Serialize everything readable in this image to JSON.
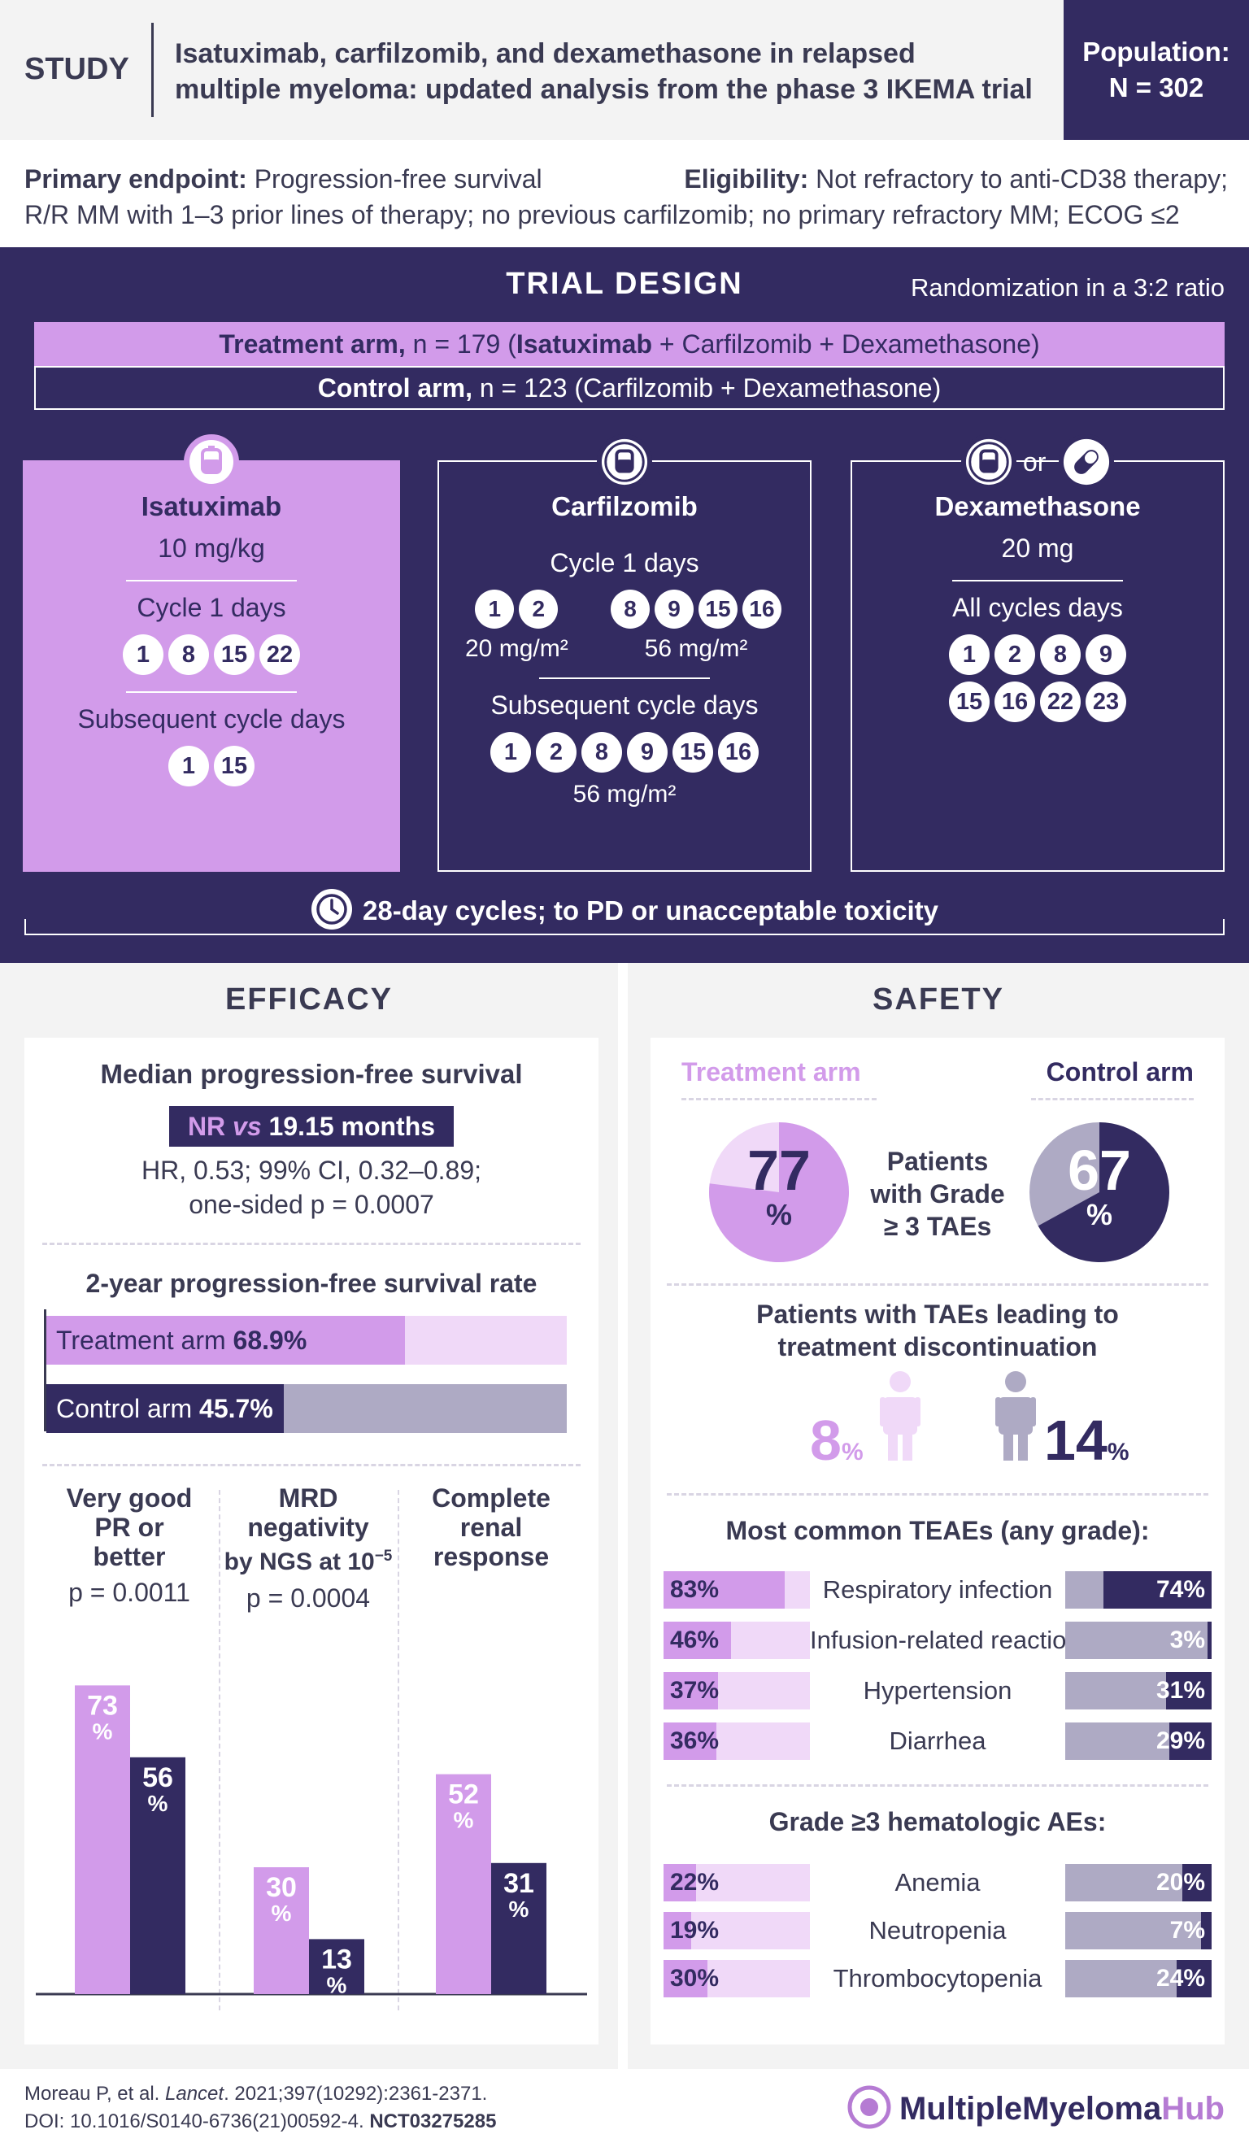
{
  "header": {
    "study_label": "STUDY",
    "title_line1": "Isatuximab, carfilzomib, and dexamethasone in relapsed",
    "title_line2": "multiple myeloma: updated analysis from the phase 3 IKEMA trial",
    "population_label": "Population:",
    "population_value": "N = 302"
  },
  "criteria": {
    "primary_label": "Primary endpoint:",
    "primary_value": "Progression-free survival",
    "eligibility_label": "Eligibility:",
    "eligibility_value": "Not refractory to anti-CD38 therapy;",
    "line2": "R/R MM with 1–3 prior lines of therapy; no previous carfilzomib; no primary refractory MM; ECOG ≤2"
  },
  "design": {
    "title": "TRIAL DESIGN",
    "randomization": "Randomization in a 3:2 ratio",
    "treatment_label": "Treatment arm,",
    "treatment_n": "n = 179 (",
    "treatment_drug_bold": "Isatuximab",
    "treatment_rest": " + Carfilzomib + Dexamethasone)",
    "control_label": "Control arm,",
    "control_rest": "n = 123 (Carfilzomib + Dexamethasone)",
    "isa": {
      "name": "Isatuximab",
      "dose": "10 mg/kg",
      "cycle1_label": "Cycle 1 days",
      "cycle1_days": [
        "1",
        "8",
        "15",
        "22"
      ],
      "subseq_label": "Subsequent cycle days",
      "subseq_days": [
        "1",
        "15"
      ]
    },
    "carf": {
      "name": "Carfilzomib",
      "cycle1_label": "Cycle 1 days",
      "cycle1_days_a": [
        "1",
        "2"
      ],
      "cycle1_dose_a": "20 mg/m²",
      "cycle1_days_b": [
        "8",
        "9",
        "15",
        "16"
      ],
      "cycle1_dose_b": "56 mg/m²",
      "subseq_label": "Subsequent cycle days",
      "subseq_days": [
        "1",
        "2",
        "8",
        "9",
        "15",
        "16"
      ],
      "subseq_dose": "56 mg/m²"
    },
    "dex": {
      "or_text": "or",
      "name": "Dexamethasone",
      "dose": "20 mg",
      "all_label": "All cycles days",
      "days_row1": [
        "1",
        "2",
        "8",
        "9"
      ],
      "days_row2": [
        "15",
        "16",
        "22",
        "23"
      ]
    },
    "cycles_note": "28-day cycles; to PD or unacceptable toxicity"
  },
  "efficacy": {
    "title": "EFFICACY",
    "mpfs_title": "Median progression-free survival",
    "mpfs_nr": "NR",
    "mpfs_vs": "vs",
    "mpfs_value": "19.15 months",
    "hr_line1": "HR, 0.53; 99% CI, 0.32–0.89;",
    "hr_line2": "one-sided p = 0.0007",
    "pfs2_title": "2-year progression-free survival rate",
    "pfs2_treat_label": "Treatment arm",
    "pfs2_treat_value": "68.9%",
    "pfs2_ctrl_label": "Control arm",
    "pfs2_ctrl_value": "45.7%",
    "groups": [
      {
        "l1": "Very good",
        "l2": "PR or",
        "l3": "better",
        "p": "p = 0.0011"
      },
      {
        "l1": "MRD",
        "l2": "negativity",
        "l3": "by NGS at 10",
        "sup": "−5",
        "p": "p = 0.0004"
      },
      {
        "l1": "Complete",
        "l2": "renal",
        "l3": "response",
        "p": ""
      }
    ],
    "percent_sign": "%"
  },
  "safety": {
    "title": "SAFETY",
    "treat_arm": "Treatment arm",
    "ctrl_arm": "Control arm",
    "g3_l1": "Patients",
    "g3_l2": "with Grade",
    "g3_l3": "≥ 3 TAEs",
    "g3_treat": "77",
    "g3_ctrl": "67",
    "pct": "%",
    "disc_l1": "Patients with TAEs leading to",
    "disc_l2": "treatment discontinuation",
    "disc_treat": "8",
    "disc_ctrl": "14",
    "teae_title": "Most common TEAEs (any grade):",
    "teae": [
      {
        "name": "Respiratory infection",
        "t": "83%",
        "c": "74%",
        "tv": 83,
        "cv": 74
      },
      {
        "name": "Infusion-related reactions",
        "t": "46%",
        "c": "3%",
        "tv": 46,
        "cv": 3
      },
      {
        "name": "Hypertension",
        "t": "37%",
        "c": "31%",
        "tv": 37,
        "cv": 31
      },
      {
        "name": "Diarrhea",
        "t": "36%",
        "c": "29%",
        "tv": 36,
        "cv": 29
      }
    ],
    "hem_title": "Grade ≥3 hematologic AEs:",
    "hem": [
      {
        "name": "Anemia",
        "t": "22%",
        "c": "20%",
        "tv": 22,
        "cv": 20
      },
      {
        "name": "Neutropenia",
        "t": "19%",
        "c": "7%",
        "tv": 19,
        "cv": 7
      },
      {
        "name": "Thrombocytopenia",
        "t": "30%",
        "c": "24%",
        "tv": 30,
        "cv": 24
      }
    ]
  },
  "footer": {
    "ref_authors": "Moreau P, et al. ",
    "ref_journal": "Lancet",
    "ref_rest": ". 2021;397(10292):2361-2371.",
    "doi": "DOI: 10.1016/S0140-6736(21)00592-4. ",
    "nct": "NCT03275285",
    "brand_a": "MultipleMyeloma",
    "brand_b": "Hub"
  },
  "chart_data": {
    "type": "bar",
    "categories": [
      "Very good PR or better",
      "MRD negativity by NGS at 10−5",
      "Complete renal response"
    ],
    "series": [
      {
        "values": [
          73,
          30,
          52
        ]
      },
      {
        "values": [
          56,
          13,
          31
        ]
      }
    ],
    "ylim": [
      0,
      100
    ],
    "colors": [
      "#d29bea",
      "#332b61"
    ]
  },
  "colors": {
    "navy": "#332b61",
    "lilac": "#d29bea",
    "light_lilac": "#f0d9f8",
    "grey": "#aeaac4"
  }
}
